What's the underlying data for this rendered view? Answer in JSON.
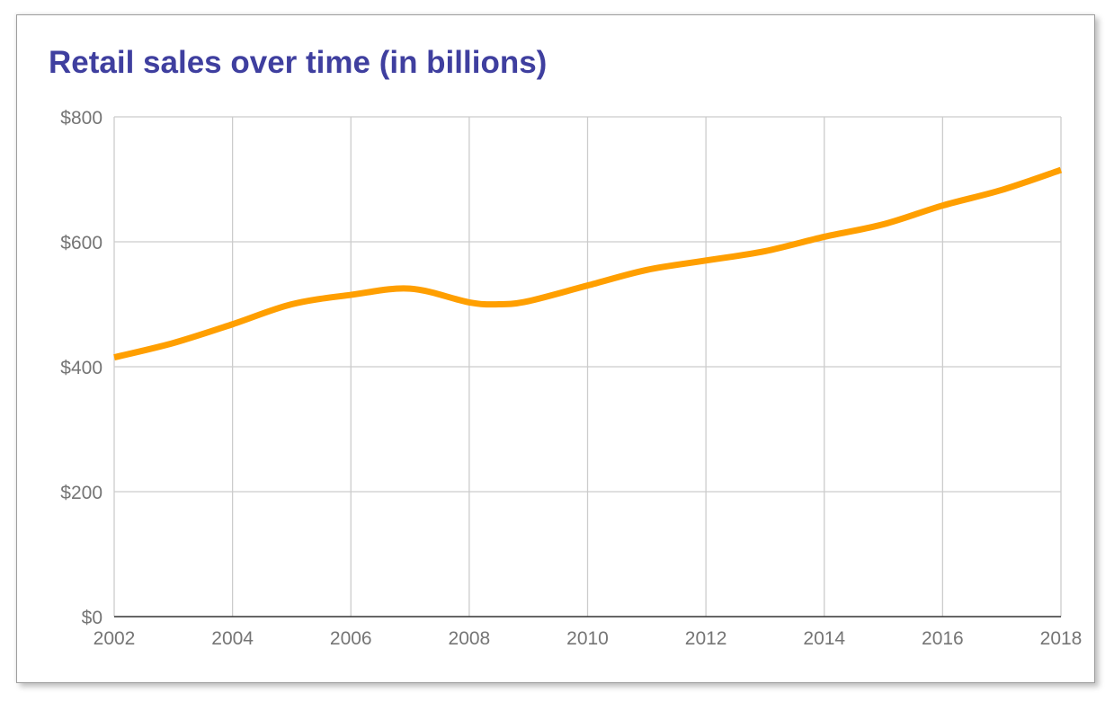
{
  "chart_data": {
    "type": "line",
    "title": "Retail sales over time (in billions)",
    "xlabel": "",
    "ylabel": "",
    "x": [
      2002,
      2003,
      2004,
      2005,
      2006,
      2007,
      2008,
      2008.5,
      2009,
      2010,
      2011,
      2012,
      2013,
      2014,
      2015,
      2016,
      2017,
      2018
    ],
    "series": [
      {
        "name": "Retail sales",
        "color": "#ff9f00",
        "values": [
          415,
          438,
          468,
          500,
          515,
          525,
          503,
          500,
          505,
          530,
          555,
          570,
          585,
          608,
          628,
          658,
          683,
          715
        ]
      }
    ],
    "xlim": [
      2002,
      2018
    ],
    "ylim": [
      0,
      800
    ],
    "x_ticks": [
      2002,
      2004,
      2006,
      2008,
      2010,
      2012,
      2014,
      2016,
      2018
    ],
    "x_tick_labels": [
      "2002",
      "2004",
      "2006",
      "2008",
      "2010",
      "2012",
      "2014",
      "2016",
      "2018"
    ],
    "y_ticks": [
      0,
      200,
      400,
      600,
      800
    ],
    "y_tick_labels": [
      "$0",
      "$200",
      "$400",
      "$600",
      "$800"
    ],
    "grid": true,
    "legend": "none",
    "colors": {
      "title": "#3f3f9f",
      "line": "#ff9f00",
      "grid": "#cccccc",
      "axis": "#333333",
      "tick_text": "#757575"
    }
  }
}
